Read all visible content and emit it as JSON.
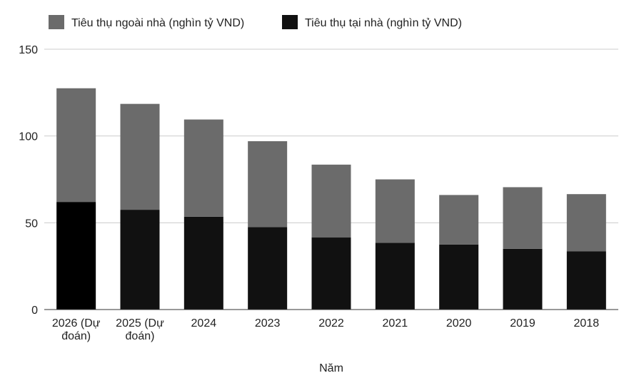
{
  "chart_data": {
    "type": "bar",
    "stacked": true,
    "xlabel": "Năm",
    "ylabel": "",
    "ylim": [
      0,
      150
    ],
    "yticks": [
      0,
      50,
      100,
      150
    ],
    "grid": true,
    "legend_position": "top-left",
    "categories": [
      "2026 (Dự đoán)",
      "2025 (Dự đoán)",
      "2024",
      "2023",
      "2022",
      "2021",
      "2020",
      "2019",
      "2018"
    ],
    "category_lines": [
      [
        "2026 (Dự",
        "đoán)"
      ],
      [
        "2025 (Dự",
        "đoán)"
      ],
      [
        "2024"
      ],
      [
        "2023"
      ],
      [
        "2022"
      ],
      [
        "2021"
      ],
      [
        "2020"
      ],
      [
        "2019"
      ],
      [
        "2018"
      ]
    ],
    "series": [
      {
        "name": "Tiêu thụ tại nhà (nghìn tỷ VND)",
        "color": "#111111",
        "values": [
          62,
          57.5,
          53.5,
          47.5,
          41.5,
          38.5,
          37.5,
          35,
          33.5
        ]
      },
      {
        "name": "Tiêu thụ ngoài nhà (nghìn tỷ VND)",
        "color": "#6b6b6b",
        "values": [
          65.5,
          61,
          56,
          49.5,
          42,
          36.5,
          28.5,
          35.5,
          33
        ]
      }
    ],
    "first_bar_color": "#000000"
  },
  "legend": [
    {
      "label": "Tiêu thụ ngoài nhà (nghìn tỷ VND)",
      "color": "#6b6b6b"
    },
    {
      "label": "Tiêu thụ tại nhà (nghìn tỷ VND)",
      "color": "#111111"
    }
  ]
}
